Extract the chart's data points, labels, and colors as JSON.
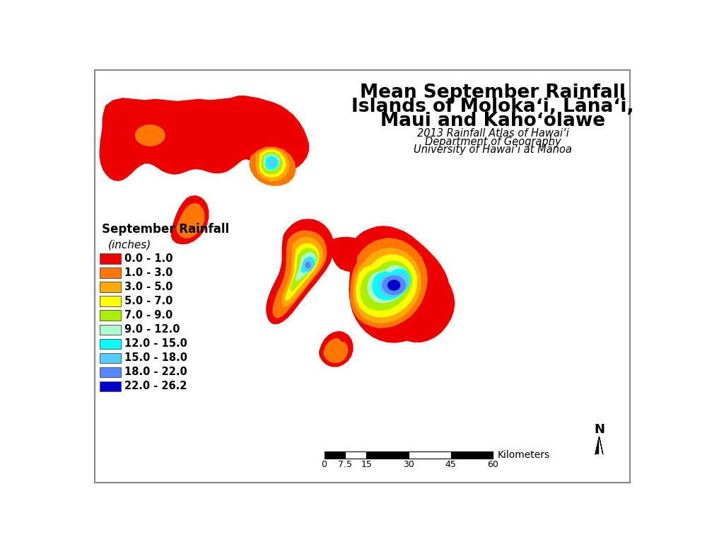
{
  "title_line1": "Mean September Rainfall",
  "title_line2": "Islands of Molokaʻi, Lānaʻi,",
  "title_line3": "Maui and Kahoʻolawe",
  "subtitle1": "2013 Rainfall Atlas of Hawaiʻi",
  "subtitle2": "Department of Geography",
  "subtitle3": "University of Hawaiʻi at Mānoa",
  "legend_title1": "September Rainfall",
  "legend_title2": "(inches)",
  "legend_items": [
    {
      "label": "0.0 - 1.0",
      "color": "#EE0000"
    },
    {
      "label": "1.0 - 3.0",
      "color": "#FF7700"
    },
    {
      "label": "3.0 - 5.0",
      "color": "#FFAA00"
    },
    {
      "label": "5.0 - 7.0",
      "color": "#FFFF00"
    },
    {
      "label": "7.0 - 9.0",
      "color": "#AAEE00"
    },
    {
      "label": "9.0 - 12.0",
      "color": "#AAFFCC"
    },
    {
      "label": "12.0 - 15.0",
      "color": "#00FFFF"
    },
    {
      "label": "15.0 - 18.0",
      "color": "#55CCFF"
    },
    {
      "label": "18.0 - 22.0",
      "color": "#5588FF"
    },
    {
      "label": "22.0 - 26.2",
      "color": "#0000CC"
    }
  ],
  "scale_bar_ticks": [
    "0",
    "7.5",
    "15",
    "30",
    "45",
    "60"
  ],
  "scale_bar_label": "Kilometers",
  "background_color": "#FFFFFF",
  "border_color": "#888888"
}
